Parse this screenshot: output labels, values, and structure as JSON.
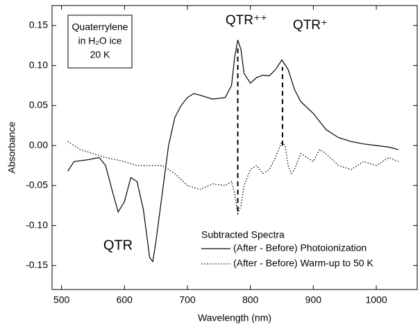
{
  "chart_data": {
    "type": "line",
    "xlabel": "Wavelength (nm)",
    "ylabel": "Absorbance",
    "xlim": [
      485,
      1065
    ],
    "ylim": [
      -0.18,
      0.175
    ],
    "xticks": [
      500,
      600,
      700,
      800,
      900,
      1000
    ],
    "yticks": [
      -0.15,
      {
        "value": -0.1,
        "label": "-0.10"
      },
      -0.05,
      {
        "value": 0,
        "label": "0.00"
      },
      0.05,
      {
        "value": 0.1,
        "label": "0.10"
      },
      0.15
    ],
    "grid": false,
    "legend": "lower right",
    "legend_title": "Subtracted Spectra",
    "inset": [
      "Quaterrylene",
      "in H₂O ice",
      "20 K"
    ],
    "annotations": [
      "QTR⁺⁺",
      "QTR⁺",
      "QTR"
    ],
    "peak_lines": [
      {
        "x": 780,
        "y1": -0.082,
        "y2": 0.125
      },
      {
        "x": 851,
        "y1": 0.0,
        "y2": 0.098
      }
    ],
    "series": [
      {
        "name": "(After - Before) Photoionization",
        "color": "#000000",
        "style": "solid",
        "x": [
          510,
          520,
          540,
          560,
          570,
          580,
          590,
          600,
          610,
          620,
          630,
          640,
          645,
          650,
          660,
          670,
          680,
          690,
          700,
          710,
          720,
          740,
          760,
          770,
          775,
          780,
          785,
          790,
          800,
          810,
          820,
          830,
          840,
          850,
          860,
          870,
          880,
          900,
          920,
          940,
          960,
          980,
          1000,
          1020,
          1035
        ],
        "values": [
          -0.032,
          -0.02,
          -0.018,
          -0.015,
          -0.025,
          -0.055,
          -0.083,
          -0.07,
          -0.04,
          -0.045,
          -0.08,
          -0.14,
          -0.145,
          -0.12,
          -0.06,
          0.0,
          0.035,
          0.05,
          0.06,
          0.065,
          0.063,
          0.058,
          0.06,
          0.075,
          0.11,
          0.132,
          0.12,
          0.09,
          0.078,
          0.085,
          0.088,
          0.087,
          0.095,
          0.107,
          0.095,
          0.07,
          0.055,
          0.04,
          0.02,
          0.01,
          0.005,
          0.002,
          0.0,
          -0.002,
          -0.005
        ]
      },
      {
        "name": "(After - Before) Warm-up to 50 K",
        "color": "#000000",
        "style": "dotted",
        "x": [
          510,
          530,
          550,
          570,
          600,
          620,
          640,
          660,
          680,
          700,
          720,
          740,
          760,
          770,
          775,
          780,
          785,
          790,
          800,
          810,
          820,
          830,
          840,
          850,
          855,
          860,
          865,
          870,
          880,
          890,
          900,
          910,
          920,
          940,
          960,
          980,
          1000,
          1020,
          1035
        ],
        "values": [
          0.005,
          -0.005,
          -0.01,
          -0.015,
          -0.02,
          -0.025,
          -0.025,
          -0.025,
          -0.035,
          -0.05,
          -0.055,
          -0.048,
          -0.05,
          -0.045,
          -0.06,
          -0.085,
          -0.075,
          -0.05,
          -0.03,
          -0.025,
          -0.035,
          -0.03,
          -0.015,
          0.005,
          0.0,
          -0.025,
          -0.035,
          -0.03,
          -0.01,
          -0.015,
          -0.02,
          -0.005,
          -0.01,
          -0.025,
          -0.03,
          -0.02,
          -0.025,
          -0.015,
          -0.02
        ]
      }
    ]
  }
}
